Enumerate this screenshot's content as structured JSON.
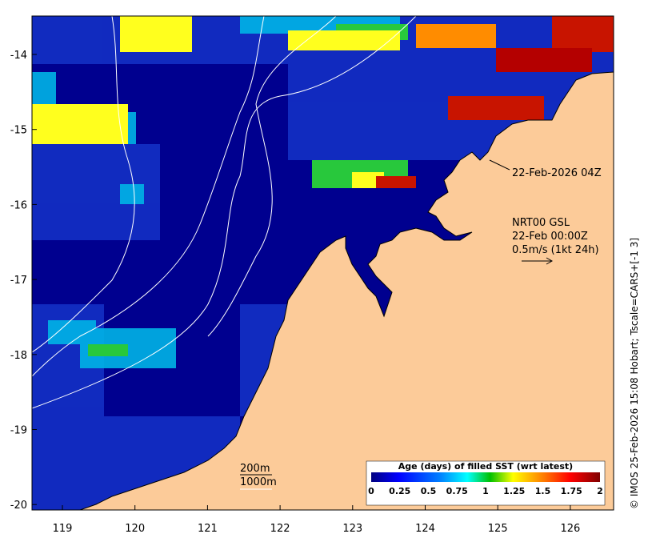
{
  "map": {
    "timestamp_label": "22-Feb-2026 04Z",
    "model_label": "NRT00 GSL",
    "time_label": "22-Feb 00:00Z",
    "vector_scale_label": "0.5m/s (1kt 24h)",
    "contour_200": "200m",
    "contour_1000": "1000m",
    "credit": "© IMOS 25-Feb-2026 15:08 Hobart; Tscale=CARS+[-1 3]",
    "lon_ticks": [
      "119",
      "120",
      "121",
      "122",
      "123",
      "124",
      "125",
      "126"
    ],
    "lat_ticks": [
      "-14",
      "-15",
      "-16",
      "-17",
      "-18",
      "-19",
      "-20"
    ],
    "colors": {
      "land": "#fccb99",
      "deep_blue": "#00008f",
      "mid_blue": "#0a1fb4"
    }
  },
  "colorbar": {
    "title": "Age (days) of filled SST (wrt latest)",
    "ticks": [
      "0",
      "0.25",
      "0.5",
      "0.75",
      "1",
      "1.25",
      "1.5",
      "1.75",
      "2"
    ],
    "range": [
      0,
      2
    ],
    "colors": [
      "#00007f",
      "#0000ff",
      "#007fff",
      "#00ffff",
      "#00c000",
      "#ffff00",
      "#ff7f00",
      "#ff0000",
      "#7f0000"
    ]
  }
}
